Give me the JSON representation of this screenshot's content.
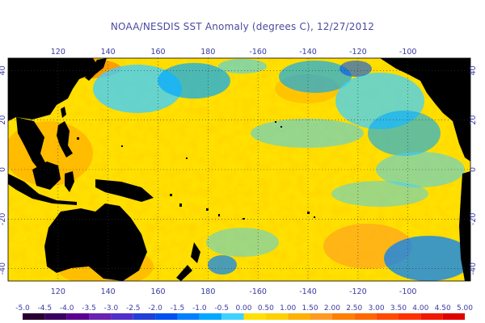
{
  "title": "NOAA/NESDIS SST Anomaly (degrees C), 12/27/2012",
  "map": {
    "type": "sea-surface-temperature-anomaly-map",
    "lon_range_deg_east": [
      100,
      285
    ],
    "lat_range": [
      -45,
      45
    ],
    "lon_ticks_top": [
      "120",
      "140",
      "160",
      "180",
      "-160",
      "-140",
      "-120",
      "-100"
    ],
    "lon_ticks_bottom": [
      "120",
      "140",
      "160",
      "180",
      "-160",
      "-140",
      "-120",
      "-100"
    ],
    "lat_ticks_left": [
      "40",
      "20",
      "0",
      "-20",
      "-40"
    ],
    "lat_ticks_right": [
      "40",
      "20",
      "0",
      "-20",
      "-40"
    ],
    "land_color": "#000000",
    "grid": "dotted"
  },
  "colorbar": {
    "labels": [
      "-5.0",
      "-4.5",
      "-4.0",
      "-3.5",
      "-3.0",
      "-2.5",
      "-2.0",
      "-1.5",
      "-1.0",
      "-0.5",
      "0.00",
      "0.50",
      "1.00",
      "1.50",
      "2.00",
      "2.50",
      "3.00",
      "3.50",
      "4.00",
      "4.50",
      "5.00"
    ],
    "colors": [
      "#2a0030",
      "#3a0060",
      "#5a0090",
      "#6a20b0",
      "#5030c8",
      "#2040d8",
      "#0050f0",
      "#0080ff",
      "#00a8ff",
      "#40d0ff",
      "#ffe000",
      "#ffd000",
      "#ffb000",
      "#ff9a20",
      "#ff8000",
      "#ff6800",
      "#ff4a00",
      "#ff3000",
      "#f01800",
      "#e00000"
    ]
  }
}
